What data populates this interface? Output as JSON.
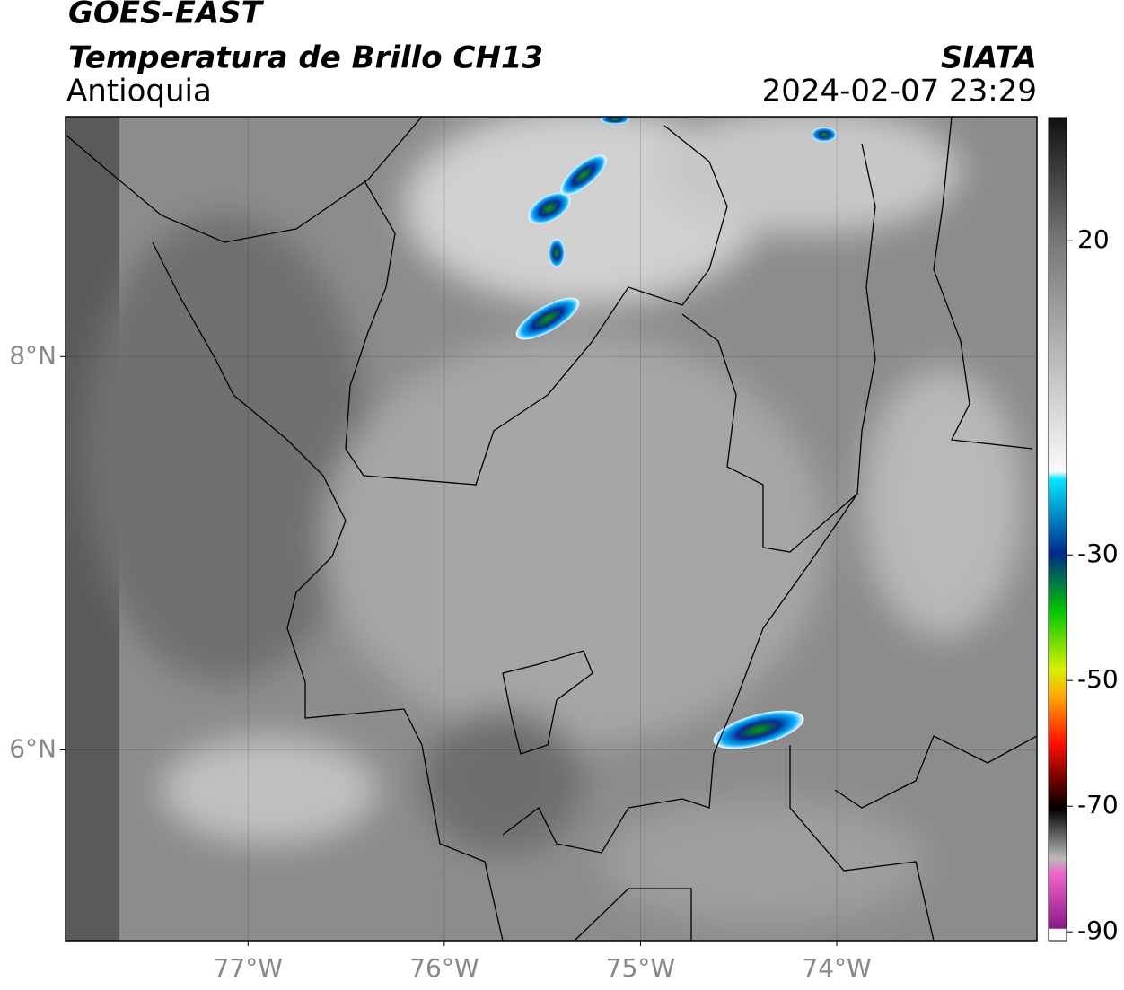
{
  "header": {
    "satellite": "GOES-EAST",
    "product": "Temperatura de Brillo CH13",
    "region": "Antioquia",
    "source": "SIATA",
    "datetime": "2024-02-07 23:29"
  },
  "map": {
    "lonlim": [
      -77.93,
      -72.98
    ],
    "latlim": [
      5.03,
      9.22
    ],
    "lon_ticks": [
      {
        "value": -77,
        "label": "77°W"
      },
      {
        "value": -76,
        "label": "76°W"
      },
      {
        "value": -75,
        "label": "75°W"
      },
      {
        "value": -74,
        "label": "74°W"
      }
    ],
    "lat_ticks": [
      {
        "value": 8,
        "label": "8°N"
      },
      {
        "value": 6,
        "label": "6°N"
      }
    ],
    "grid": true
  },
  "colorbar": {
    "lim": [
      -91.4,
      39.6
    ],
    "ticks": [
      20,
      -30,
      -50,
      -70,
      -90
    ]
  }
}
